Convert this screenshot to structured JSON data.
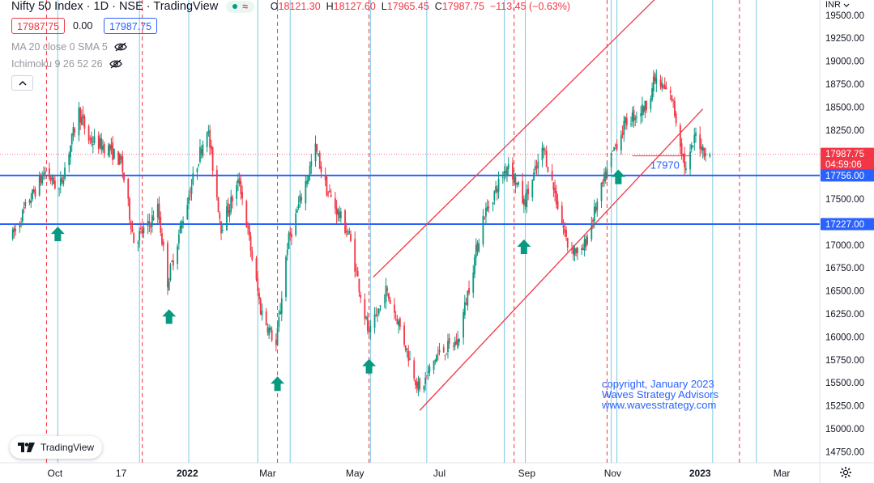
{
  "header": {
    "title": "Nifty 50 Index · 1D · NSE · TradingView",
    "live_icon": "green-dot",
    "wave_icon": "wave-icon",
    "ohlc": [
      {
        "label": "O",
        "value": "18121.30"
      },
      {
        "label": "H",
        "value": "18127.60"
      },
      {
        "label": "L",
        "value": "17965.45"
      },
      {
        "label": "C",
        "value": "17987.75"
      }
    ],
    "change": "−113.45 (−0.63%)"
  },
  "bid_ask": {
    "sell": "17987.75",
    "spread": "0.00",
    "buy": "17987.75"
  },
  "indicators": [
    {
      "label": "MA 20 close 0 SMA 5",
      "icon": "eye-hidden-icon"
    },
    {
      "label": "Ichimoku 9 26 52 26",
      "icon": "eye-hidden-icon"
    }
  ],
  "currency": "INR",
  "branding": {
    "logo_text": "TradingView"
  },
  "copyright": [
    "copyright, January 2023",
    "Waves Strategy Advisors",
    "www.wavesstrategy.com"
  ],
  "colors": {
    "up": "#089981",
    "down": "#f23645",
    "hline": "#2962ff",
    "channel": "#f23645",
    "cycle_red": "#f23645",
    "cycle_blue": "#7ec8e3",
    "arrow": "#089981"
  },
  "chart_data": {
    "type": "candlestick",
    "symbol": "Nifty 50 Index",
    "interval": "1D",
    "exchange": "NSE",
    "y_ticks": [
      "19500.00",
      "19250.00",
      "19000.00",
      "18750.00",
      "18500.00",
      "18250.00",
      "18000.00",
      "17750.00",
      "17500.00",
      "17250.00",
      "17000.00",
      "16750.00",
      "16500.00",
      "16250.00",
      "16000.00",
      "15750.00",
      "15500.00",
      "15250.00",
      "15000.00",
      "14750.00"
    ],
    "ylim": [
      14630,
      19560
    ],
    "x_ticks": [
      {
        "label": "Oct",
        "date": "2021-10-01"
      },
      {
        "label": "17",
        "date": "2021-11-17"
      },
      {
        "label": "2022",
        "date": "2022-01-03"
      },
      {
        "label": "Mar",
        "date": "2022-03-01"
      },
      {
        "label": "May",
        "date": "2022-05-02"
      },
      {
        "label": "Jul",
        "date": "2022-07-01"
      },
      {
        "label": "Sep",
        "date": "2022-09-01"
      },
      {
        "label": "Nov",
        "date": "2022-11-01"
      },
      {
        "label": "2023",
        "date": "2023-01-02"
      },
      {
        "label": "Mar",
        "date": "2023-03-01"
      }
    ],
    "bold_x_ticks": [
      "2022",
      "2023"
    ],
    "price_labels": [
      {
        "value": 17987.75,
        "text": "17987.75",
        "sub": "04:59:06",
        "color": "#f23645"
      },
      {
        "value": 17756.0,
        "text": "17756.00",
        "color": "#2962ff"
      },
      {
        "value": 17227.0,
        "text": "17227.00",
        "color": "#2962ff"
      }
    ],
    "horizontal_lines": [
      17756.0,
      17227.0
    ],
    "last_price_line": 17987.75,
    "annotation": {
      "text": "17970",
      "date": "2022-11-15",
      "value": 17970
    },
    "channel": {
      "upper": [
        {
          "date": "2022-05-15",
          "value": 16650
        },
        {
          "date": "2022-12-06",
          "value": 19750
        }
      ],
      "lower": [
        {
          "date": "2022-06-17",
          "value": 15200
        },
        {
          "date": "2023-01-04",
          "value": 18480
        }
      ]
    },
    "cycle_lines_red": [
      "2021-09-25",
      "2021-12-02",
      "2022-03-08",
      "2022-05-12",
      "2022-08-23",
      "2022-10-28",
      "2023-01-30"
    ],
    "cycle_lines_blue": [
      "2021-10-03",
      "2021-11-30",
      "2022-01-04",
      "2022-02-22",
      "2022-03-17",
      "2022-05-13",
      "2022-06-22",
      "2022-08-16",
      "2022-08-31",
      "2022-10-31",
      "2022-11-04",
      "2023-01-11",
      "2023-02-11"
    ],
    "arrows": [
      {
        "date": "2021-10-03",
        "value": 17200
      },
      {
        "date": "2021-12-21",
        "value": 16300
      },
      {
        "date": "2022-03-08",
        "value": 15570
      },
      {
        "date": "2022-05-12",
        "value": 15760
      },
      {
        "date": "2022-08-30",
        "value": 17060
      },
      {
        "date": "2022-11-05",
        "value": 17820
      }
    ],
    "candles_anchor_path": [
      [
        "2021-09-01",
        17100
      ],
      [
        "2021-09-10",
        17400
      ],
      [
        "2021-09-24",
        17800
      ],
      [
        "2021-10-04",
        17600
      ],
      [
        "2021-10-18",
        18450
      ],
      [
        "2021-10-25",
        18150
      ],
      [
        "2021-11-08",
        18050
      ],
      [
        "2021-11-17",
        17900
      ],
      [
        "2021-11-26",
        17050
      ],
      [
        "2021-12-06",
        17200
      ],
      [
        "2021-12-13",
        17400
      ],
      [
        "2021-12-20",
        16600
      ],
      [
        "2021-12-31",
        17300
      ],
      [
        "2022-01-17",
        18300
      ],
      [
        "2022-01-27",
        17200
      ],
      [
        "2022-02-09",
        17700
      ],
      [
        "2022-02-24",
        16300
      ],
      [
        "2022-03-07",
        15900
      ],
      [
        "2022-03-15",
        17000
      ],
      [
        "2022-04-04",
        18050
      ],
      [
        "2022-04-12",
        17600
      ],
      [
        "2022-04-28",
        17100
      ],
      [
        "2022-05-12",
        16000
      ],
      [
        "2022-05-24",
        16500
      ],
      [
        "2022-06-01",
        16200
      ],
      [
        "2022-06-17",
        15400
      ],
      [
        "2022-06-29",
        15800
      ],
      [
        "2022-07-14",
        15950
      ],
      [
        "2022-08-01",
        17300
      ],
      [
        "2022-08-19",
        17900
      ],
      [
        "2022-08-30",
        17450
      ],
      [
        "2022-09-13",
        18050
      ],
      [
        "2022-09-30",
        17000
      ],
      [
        "2022-10-10",
        16900
      ],
      [
        "2022-11-02",
        18050
      ],
      [
        "2022-11-11",
        18350
      ],
      [
        "2022-11-24",
        18500
      ],
      [
        "2022-12-01",
        18800
      ],
      [
        "2022-12-13",
        18600
      ],
      [
        "2022-12-23",
        17800
      ],
      [
        "2022-12-30",
        18200
      ],
      [
        "2023-01-04",
        18050
      ],
      [
        "2023-01-09",
        17987.75
      ]
    ]
  }
}
